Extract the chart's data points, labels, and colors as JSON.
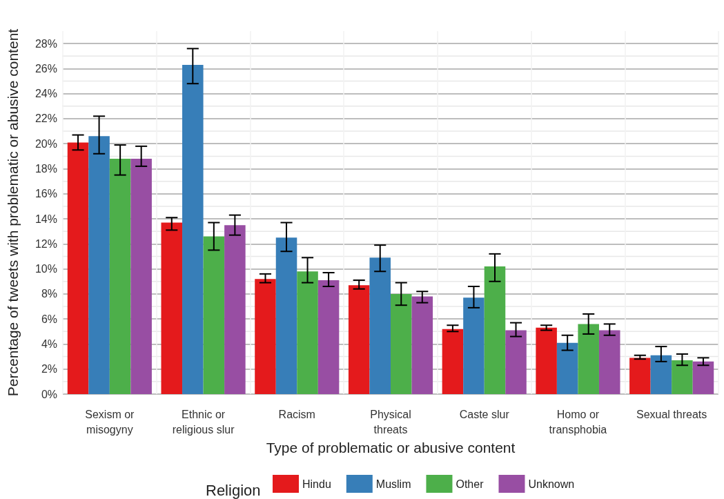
{
  "chart_data": {
    "type": "bar",
    "xlabel": "Type of problematic or abusive content",
    "ylabel": "Percentage of tweets with problematic or abusive content",
    "legend_title": "Religion",
    "categories": [
      "Sexism or\nmisogyny",
      "Ethnic or\nreligious slur",
      "Racism",
      "Physical\nthreats",
      "Caste slur",
      "Homo or\ntransphobia",
      "Sexual threats"
    ],
    "series": [
      {
        "name": "Hindu",
        "color": "#e41a1c",
        "values": [
          20.1,
          13.7,
          9.2,
          8.7,
          5.2,
          5.3,
          2.9
        ],
        "errors": [
          [
            19.5,
            20.7
          ],
          [
            13.1,
            14.1
          ],
          [
            8.9,
            9.6
          ],
          [
            8.4,
            9.1
          ],
          [
            5.0,
            5.5
          ],
          [
            5.1,
            5.5
          ],
          [
            2.8,
            3.1
          ]
        ]
      },
      {
        "name": "Muslim",
        "color": "#377eb8",
        "values": [
          20.6,
          26.3,
          12.5,
          10.9,
          7.7,
          4.1,
          3.1
        ],
        "errors": [
          [
            19.2,
            22.2
          ],
          [
            24.8,
            27.6
          ],
          [
            11.4,
            13.7
          ],
          [
            9.8,
            11.9
          ],
          [
            6.9,
            8.6
          ],
          [
            3.5,
            4.7
          ],
          [
            2.6,
            3.8
          ]
        ]
      },
      {
        "name": "Other",
        "color": "#4daf4a",
        "values": [
          18.8,
          12.6,
          9.8,
          8.0,
          10.2,
          5.6,
          2.7
        ],
        "errors": [
          [
            17.5,
            19.9
          ],
          [
            11.5,
            13.7
          ],
          [
            8.9,
            10.9
          ],
          [
            7.1,
            8.9
          ],
          [
            9.0,
            11.2
          ],
          [
            4.8,
            6.4
          ],
          [
            2.3,
            3.2
          ]
        ]
      },
      {
        "name": "Unknown",
        "color": "#984ea3",
        "values": [
          18.8,
          13.5,
          9.1,
          7.8,
          5.1,
          5.1,
          2.6
        ],
        "errors": [
          [
            18.2,
            19.8
          ],
          [
            12.7,
            14.3
          ],
          [
            8.6,
            9.7
          ],
          [
            7.3,
            8.2
          ],
          [
            4.6,
            5.7
          ],
          [
            4.7,
            5.6
          ],
          [
            2.3,
            2.9
          ]
        ]
      }
    ],
    "ylim": [
      0,
      29
    ],
    "yticks": [
      {
        "value": 0,
        "label": "0%"
      },
      {
        "value": 2,
        "label": "2%"
      },
      {
        "value": 4,
        "label": "4%"
      },
      {
        "value": 6,
        "label": "6%"
      },
      {
        "value": 8,
        "label": "8%"
      },
      {
        "value": 10,
        "label": "10%"
      },
      {
        "value": 12,
        "label": "12%"
      },
      {
        "value": 14,
        "label": "14%"
      },
      {
        "value": 16,
        "label": "16%"
      },
      {
        "value": 18,
        "label": "18%"
      },
      {
        "value": 20,
        "label": "20%"
      },
      {
        "value": 22,
        "label": "22%"
      },
      {
        "value": 24,
        "label": "24%"
      },
      {
        "value": 26,
        "label": "26%"
      },
      {
        "value": 28,
        "label": "28%"
      }
    ],
    "grid": true,
    "legend": "bottom"
  }
}
